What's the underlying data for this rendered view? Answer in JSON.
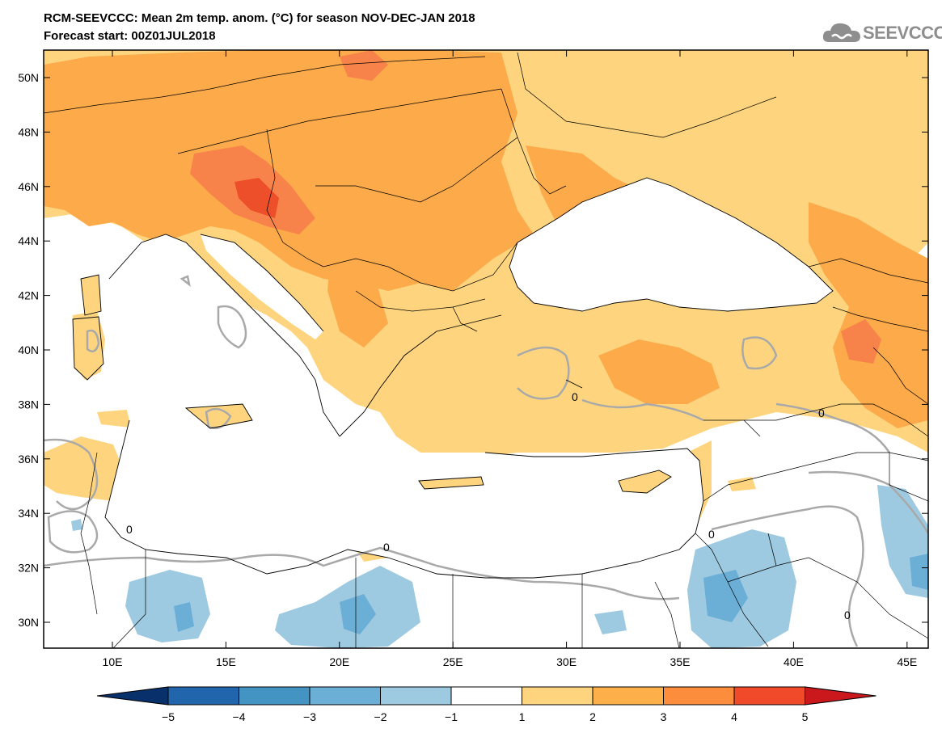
{
  "header": {
    "title_line1": "RCM-SEEVCCC: Mean 2m temp. anom. (°C) for season NOV-DEC-JAN 2018",
    "title_line2": "Forecast start: 00Z01JUL2018",
    "logo_text": "SEEVCCC"
  },
  "map": {
    "lon_labels": [
      "10E",
      "15E",
      "20E",
      "25E",
      "30E",
      "35E",
      "40E",
      "45E"
    ],
    "lat_labels": [
      "50N",
      "48N",
      "46N",
      "44N",
      "42N",
      "40N",
      "38N",
      "36N",
      "34N",
      "32N",
      "30N"
    ],
    "contour_label": "0",
    "colors": {
      "anom_1_2": "#fed57e",
      "anom_2_3": "#fdaa4a",
      "anom_3_4": "#f8834a",
      "anom_4_5": "#ec4f2a",
      "anom_m1_m2": "#9ecae1",
      "anom_m2_m3": "#6baed6",
      "anom_m3_m4": "#4292c6",
      "zero_contour": "#a9a9a9",
      "borders": "#000000"
    }
  },
  "colorbar": {
    "labels": [
      "−5",
      "−4",
      "−3",
      "−2",
      "−1",
      "1",
      "2",
      "3",
      "4",
      "5"
    ],
    "colors": [
      "#08306b",
      "#2166ac",
      "#4393c3",
      "#6baed6",
      "#9ecae1",
      "#ffffff",
      "#fed57e",
      "#fdb04a",
      "#fc8d3c",
      "#f04a2a",
      "#cb181d"
    ]
  }
}
